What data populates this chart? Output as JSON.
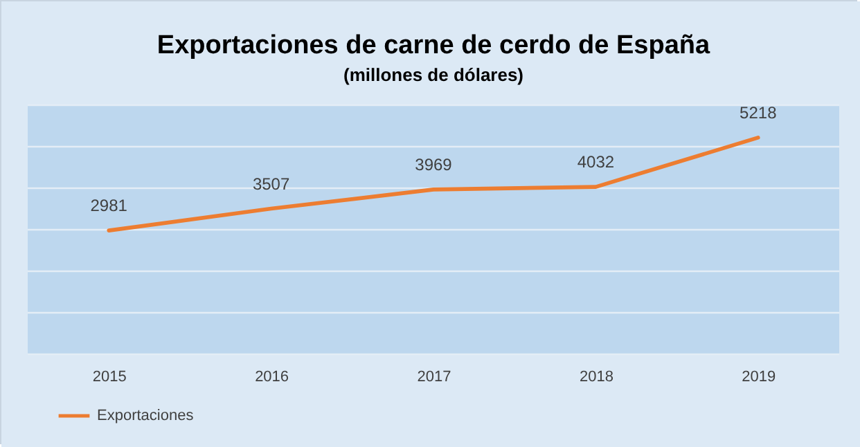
{
  "chart_data": {
    "type": "line",
    "title": "Exportaciones de carne de cerdo de España",
    "subtitle": "(millones de dólares)",
    "categories": [
      "2015",
      "2016",
      "2017",
      "2018",
      "2019"
    ],
    "series": [
      {
        "name": "Exportaciones",
        "color": "#ed7d31",
        "values": [
          2981,
          3507,
          3969,
          4032,
          5218
        ]
      }
    ],
    "ylim": [
      0,
      6000
    ],
    "yticks": [
      {
        "value": 0,
        "label": null
      },
      {
        "value": 1000,
        "label": null
      },
      {
        "value": 2000,
        "label": null
      },
      {
        "value": 3000,
        "label": null
      },
      {
        "value": 4000,
        "label": null
      },
      {
        "value": 5000,
        "label": null
      },
      {
        "value": 6000,
        "label": null
      }
    ],
    "grid": "y",
    "tick_labels": "x",
    "data_labels": true,
    "legend": "bottom"
  }
}
